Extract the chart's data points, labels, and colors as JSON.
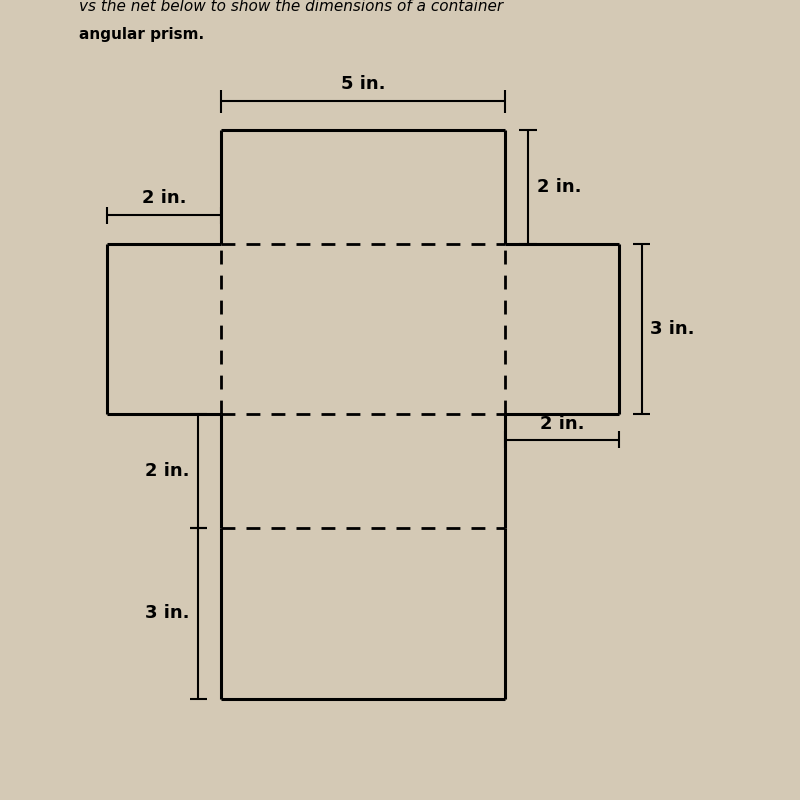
{
  "bg_color": "#d4c9b5",
  "line_color": "#000000",
  "label_5in": "5 in.",
  "label_2in_top": "2 in.",
  "label_2in_left": "2 in.",
  "label_3in_right": "3 in.",
  "label_2in_right": "2 in.",
  "label_2in_bottom_left": "2 in.",
  "label_3in_bottom_left": "3 in.",
  "text_line1": "vs the net below to show the dimensions of a container",
  "text_line2": "angular prism.",
  "lw_solid": 2.2,
  "lw_dash": 2.0,
  "fs_label": 13
}
